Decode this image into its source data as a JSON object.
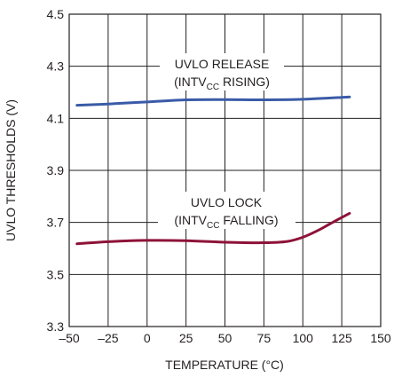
{
  "chart_data": {
    "type": "line",
    "title": "",
    "xlabel": "TEMPERATURE (°C)",
    "ylabel": "UVLO THRESHOLDS (V)",
    "xlim": [
      -50,
      150
    ],
    "ylim": [
      3.3,
      4.5
    ],
    "xticks": [
      -50,
      -25,
      0,
      25,
      50,
      75,
      100,
      125,
      150
    ],
    "yticks": [
      3.3,
      3.5,
      3.7,
      3.9,
      4.1,
      4.3,
      4.5
    ],
    "xtick_labels": [
      "–50",
      "–25",
      "0",
      "25",
      "50",
      "75",
      "100",
      "125",
      "150"
    ],
    "ytick_labels": [
      "3.3",
      "3.5",
      "3.7",
      "3.9",
      "4.1",
      "4.3",
      "4.5"
    ],
    "grid": true,
    "series": [
      {
        "name": "UVLO RELEASE",
        "color": "#3a5ba7",
        "x": [
          -45,
          -25,
          0,
          25,
          50,
          75,
          100,
          130
        ],
        "y": [
          4.15,
          4.155,
          4.163,
          4.171,
          4.172,
          4.171,
          4.173,
          4.182
        ]
      },
      {
        "name": "UVLO LOCK",
        "color": "#8e1338",
        "x": [
          -45,
          -25,
          0,
          25,
          50,
          75,
          90,
          100,
          110,
          120,
          130
        ],
        "y": [
          3.618,
          3.626,
          3.631,
          3.63,
          3.624,
          3.622,
          3.627,
          3.643,
          3.67,
          3.703,
          3.735
        ]
      }
    ],
    "annotations": [
      {
        "line1": "UVLO RELEASE",
        "line2_pre": "(INTV",
        "line2_sub": "CC",
        "line2_post": " RISING)"
      },
      {
        "line1": "UVLO LOCK",
        "line2_pre": "(INTV",
        "line2_sub": "CC",
        "line2_post": " FALLING)"
      }
    ]
  }
}
